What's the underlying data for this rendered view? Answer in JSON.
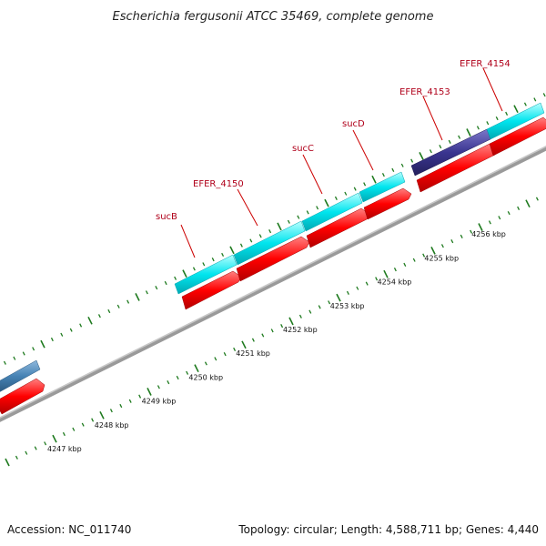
{
  "title": "Escherichia fergusonii ATCC 35469, complete genome",
  "footer": {
    "accession": "Accession: NC_011740",
    "summary": "Topology: circular; Length: 4,588,711 bp; Genes: 4,440"
  },
  "genes": [
    {
      "name": "sucB",
      "color": "#00e5ee"
    },
    {
      "name": "EFER_4150",
      "color": "#00e5ee"
    },
    {
      "name": "sucC",
      "color": "#00e5ee"
    },
    {
      "name": "sucD",
      "color": "#00e5ee"
    },
    {
      "name": "EFER_4153",
      "color": "#3a3590"
    },
    {
      "name": "EFER_4154",
      "color": "#00e5ee"
    }
  ],
  "scale_ticks": [
    "4247 kbp",
    "4248 kbp",
    "4249 kbp",
    "4250 kbp",
    "4251 kbp",
    "4252 kbp",
    "4253 kbp",
    "4254 kbp",
    "4255 kbp",
    "4256 kbp"
  ],
  "colors": {
    "cds_forward": "#00e5ee",
    "cds_reverse": "#ff0000",
    "cds_other": "#3a3590",
    "upstream_gene": "#4682b4",
    "backbone": "#8a8a8a",
    "tick": "#1e7a1e",
    "label": "#b0001a"
  }
}
